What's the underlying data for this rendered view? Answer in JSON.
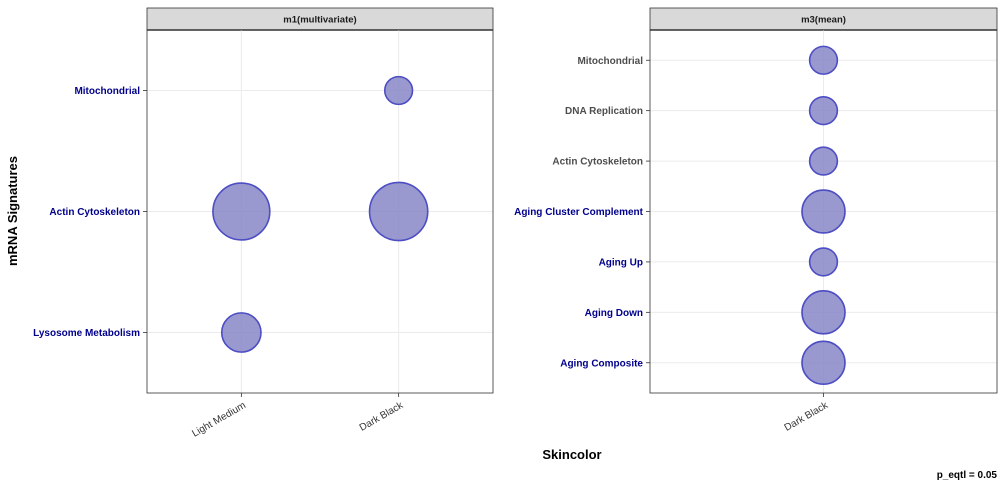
{
  "figure": {
    "ylabel": "mRNA Signatures",
    "xlabel": "Skincolor",
    "footnote": "p_eqtl =  0.05"
  },
  "colors": {
    "point_fill": "#8787c8",
    "point_stroke": "#4d4dc4",
    "highlight_label": "#00008b",
    "normal_label": "#4d4d4d",
    "strip_bg": "#d9d9d9",
    "grid": "#ebebeb"
  },
  "chart_data": [
    {
      "type": "scatter",
      "title": "m1(multivariate)",
      "x": [
        "Light Medium",
        "Dark Black"
      ],
      "y_categories": [
        "Mitochondrial",
        "Actin Cytoskeleton",
        "Lysosome Metabolism"
      ],
      "highlighted_y_labels": [
        "Mitochondrial",
        "Actin Cytoskeleton",
        "Lysosome Metabolism"
      ],
      "points": [
        {
          "x": "Dark Black",
          "y": "Mitochondrial",
          "size": 1.0
        },
        {
          "x": "Light Medium",
          "y": "Actin Cytoskeleton",
          "size": 4.2
        },
        {
          "x": "Dark Black",
          "y": "Actin Cytoskeleton",
          "size": 4.4
        },
        {
          "x": "Light Medium",
          "y": "Lysosome Metabolism",
          "size": 2.0
        }
      ],
      "grid": true
    },
    {
      "type": "scatter",
      "title": "m3(mean)",
      "x": [
        "Dark Black"
      ],
      "y_categories": [
        "Mitochondrial",
        "DNA Replication",
        "Actin Cytoskeleton",
        "Aging Cluster Complement",
        "Aging Up",
        "Aging Down",
        "Aging Composite"
      ],
      "highlighted_y_labels": [
        "Aging Cluster Complement",
        "Aging Up",
        "Aging Down",
        "Aging Composite"
      ],
      "points": [
        {
          "x": "Dark Black",
          "y": "Mitochondrial",
          "size": 1.0
        },
        {
          "x": "Dark Black",
          "y": "DNA Replication",
          "size": 1.0
        },
        {
          "x": "Dark Black",
          "y": "Actin Cytoskeleton",
          "size": 1.0
        },
        {
          "x": "Dark Black",
          "y": "Aging Cluster Complement",
          "size": 2.4
        },
        {
          "x": "Dark Black",
          "y": "Aging Up",
          "size": 1.0
        },
        {
          "x": "Dark Black",
          "y": "Aging Down",
          "size": 2.4
        },
        {
          "x": "Dark Black",
          "y": "Aging Composite",
          "size": 2.4
        }
      ],
      "grid": true
    }
  ]
}
